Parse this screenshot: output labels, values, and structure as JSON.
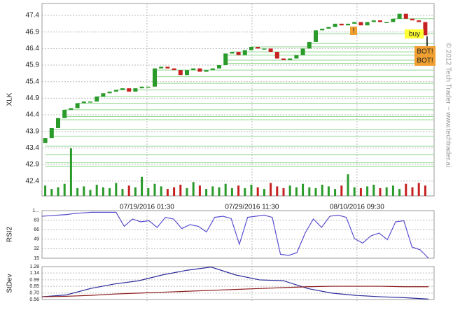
{
  "chart_data": [
    {
      "type": "candlestick",
      "y_label": "XLK",
      "open": [
        43.55,
        43.7,
        44.0,
        44.3,
        44.55,
        44.6,
        44.75,
        44.8,
        44.8,
        44.95,
        45.05,
        45.1,
        45.15,
        45.2,
        45.1,
        45.2,
        45.25,
        45.25,
        45.8,
        45.85,
        45.8,
        45.75,
        45.6,
        45.75,
        45.8,
        45.7,
        45.75,
        45.8,
        45.9,
        46.25,
        46.3,
        46.2,
        46.35,
        46.45,
        46.4,
        46.4,
        46.3,
        46.1,
        46.05,
        46.1,
        46.2,
        46.4,
        46.6,
        46.95,
        47.0,
        47.05,
        47.15,
        47.1,
        47.15,
        47.2,
        47.1,
        47.2,
        47.25,
        47.2,
        47.2,
        47.3,
        47.45,
        47.3,
        47.25,
        47.2
      ],
      "close": [
        43.7,
        44.0,
        44.3,
        44.55,
        44.6,
        44.75,
        44.8,
        44.8,
        44.95,
        45.05,
        45.1,
        45.15,
        45.2,
        45.1,
        45.2,
        45.25,
        45.25,
        45.8,
        45.85,
        45.8,
        45.75,
        45.6,
        45.75,
        45.8,
        45.7,
        45.75,
        45.8,
        45.9,
        46.25,
        46.3,
        46.2,
        46.35,
        46.45,
        46.4,
        46.4,
        46.3,
        46.1,
        46.05,
        46.1,
        46.2,
        46.4,
        46.6,
        46.95,
        47.0,
        47.05,
        47.15,
        47.1,
        47.15,
        47.2,
        47.1,
        47.2,
        47.25,
        47.2,
        47.2,
        47.3,
        47.45,
        47.3,
        47.25,
        47.2,
        46.8
      ],
      "volume": [
        12,
        8,
        10,
        14,
        55,
        9,
        11,
        7,
        13,
        10,
        9,
        15,
        8,
        12,
        10,
        22,
        9,
        14,
        11,
        8,
        10,
        13,
        9,
        16,
        12,
        8,
        11,
        10,
        14,
        9,
        12,
        9,
        13,
        10,
        8,
        15,
        11,
        9,
        12,
        10,
        14,
        10,
        9,
        13,
        11,
        8,
        12,
        25,
        10,
        9,
        11,
        13,
        9,
        10,
        12,
        8,
        14,
        10,
        15,
        12
      ],
      "up_color": "#2a9a2a",
      "down_color": "#c62020",
      "level_color": "#8fd68f",
      "levels": [
        47.3,
        46.85,
        46.55,
        46.45,
        46.3,
        46.2,
        46.05,
        45.95,
        45.75,
        45.55,
        45.35,
        45.15,
        44.95,
        44.75,
        44.55,
        44.35,
        44.25,
        43.95,
        43.75,
        43.45,
        43.2,
        42.95,
        42.85
      ],
      "xlim": [
        0,
        60
      ],
      "xticks": [
        {
          "value": 16.3,
          "label": "07/19/2016 01:30"
        },
        {
          "value": 32.6,
          "label": "07/29/2016 11:30"
        },
        {
          "value": 48.9,
          "label": "08/10/2016 09:30"
        }
      ],
      "ylim": [
        41.95,
        47.76
      ],
      "yticks": [
        42.4,
        42.9,
        43.4,
        43.9,
        44.4,
        44.9,
        45.4,
        45.9,
        46.4,
        46.9,
        47.4
      ],
      "grid": true,
      "annotations": [
        "!",
        "buy",
        "BOT!",
        "BOT!"
      ],
      "watermark": "© 2012 Tech Trader ~ www.techtrader.ai"
    },
    {
      "type": "line",
      "y_label": "RSI2",
      "color": "#5a4fcf",
      "values": [
        90,
        91,
        92,
        93,
        95,
        96,
        97,
        97,
        97,
        97,
        72,
        85,
        80,
        82,
        70,
        88,
        85,
        68,
        75,
        72,
        62,
        88,
        90,
        86,
        40,
        88,
        90,
        92,
        88,
        22,
        20,
        25,
        60,
        85,
        70,
        90,
        92,
        88,
        50,
        42,
        55,
        60,
        48,
        80,
        82,
        35,
        30,
        15
      ],
      "ylim": [
        15,
        100
      ],
      "yticks": [
        {
          "value": 100,
          "label": "1..."
        },
        83,
        66,
        49,
        32,
        15
      ],
      "grid": true
    },
    {
      "type": "line",
      "y_label": "StDev",
      "series": [
        {
          "color": "#2b2b9a",
          "values": [
            0.62,
            0.66,
            0.8,
            0.9,
            0.97,
            1.1,
            1.2,
            1.27,
            1.1,
            0.99,
            0.97,
            0.8,
            0.7,
            0.65,
            0.62,
            0.6,
            0.57
          ]
        },
        {
          "color": "#8b1a1a",
          "values": [
            0.62,
            0.63,
            0.65,
            0.68,
            0.7,
            0.72,
            0.74,
            0.76,
            0.78,
            0.8,
            0.82,
            0.84,
            0.85,
            0.85,
            0.85,
            0.84,
            0.84
          ]
        }
      ],
      "ylim": [
        0.56,
        1.28
      ],
      "yticks": [
        1.28,
        1.14,
        0.99,
        0.85,
        {
          "value": 0.7,
          "label": "0.70"
        },
        0.56
      ],
      "grid": true
    }
  ]
}
